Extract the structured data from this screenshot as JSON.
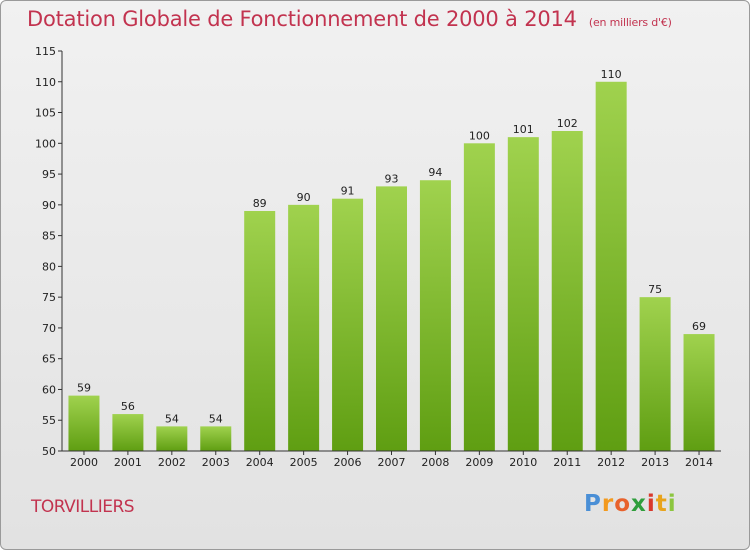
{
  "title": "Dotation Globale de Fonctionnement de 2000 à 2014",
  "subtitle": "(en milliers d'€)",
  "commune": "TORVILLIERS",
  "logo": {
    "letters": [
      "P",
      "r",
      "o",
      "x",
      "i",
      "t",
      "i"
    ]
  },
  "colors": {
    "title": "#c2334f",
    "bar_top": "#a0d24e",
    "bar_bottom": "#5f9e12",
    "logo": [
      "#4a8fd6",
      "#f39a1e",
      "#e8622c",
      "#2f9e3c",
      "#d9382b",
      "#e8a41c",
      "#8cc63f"
    ]
  },
  "chart_data": {
    "type": "bar",
    "title": "Dotation Globale de Fonctionnement de 2000 à 2014",
    "subtitle": "(en milliers d'€)",
    "xlabel": "",
    "ylabel": "",
    "categories": [
      "2000",
      "2001",
      "2002",
      "2003",
      "2004",
      "2005",
      "2006",
      "2007",
      "2008",
      "2009",
      "2010",
      "2011",
      "2012",
      "2013",
      "2014"
    ],
    "values": [
      59,
      56,
      54,
      54,
      89,
      90,
      91,
      93,
      94,
      100,
      101,
      102,
      110,
      75,
      69
    ],
    "ylim": [
      50,
      115
    ],
    "yticks": [
      50,
      55,
      60,
      65,
      70,
      75,
      80,
      85,
      90,
      95,
      100,
      105,
      110,
      115
    ],
    "grid": false,
    "data_labels": true
  }
}
